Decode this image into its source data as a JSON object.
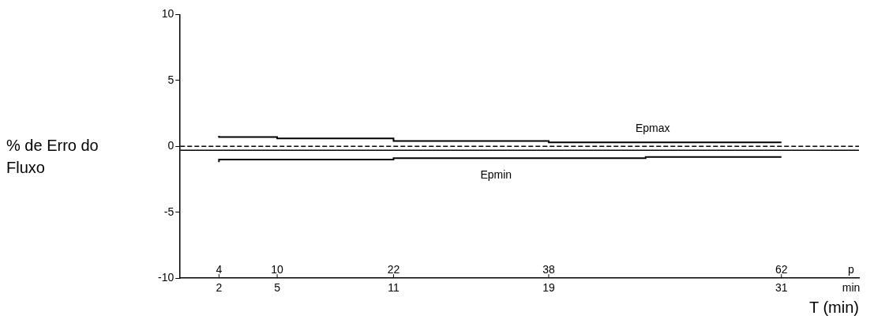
{
  "chart_data": {
    "type": "step",
    "ylabel": "% de Erro do Fluxo",
    "xlabel": "T (min)",
    "xlim": [
      0,
      35
    ],
    "xticks": [
      2,
      5,
      11,
      19,
      31
    ],
    "x2lim": [
      0,
      70
    ],
    "x2ticks": [
      4,
      10,
      22,
      38,
      62
    ],
    "ylim": [
      -10,
      10
    ],
    "yticks": [
      -10,
      -5,
      0,
      5,
      10
    ],
    "grid": false,
    "legend": false,
    "marker": "none",
    "series": [
      {
        "name": "Epmax",
        "color": "#000000",
        "x": [
          2,
          5,
          11,
          19,
          27,
          31
        ],
        "values": [
          0.8,
          0.7,
          0.6,
          0.4,
          0.3,
          0.3
        ]
      },
      {
        "name": "Epmin",
        "color": "#000000",
        "x": [
          2,
          7,
          11,
          24,
          31
        ],
        "values": [
          -1.2,
          -1.0,
          -1.0,
          -0.9,
          -0.8
        ]
      }
    ],
    "ref_lines": [
      {
        "axis": "y",
        "value": 0,
        "line_style": "dashed",
        "color": "#000000"
      },
      {
        "axis": "y",
        "value": -0.3,
        "line_style": "solid",
        "color": "#000000"
      }
    ],
    "annotations": [
      "p",
      "min"
    ]
  }
}
